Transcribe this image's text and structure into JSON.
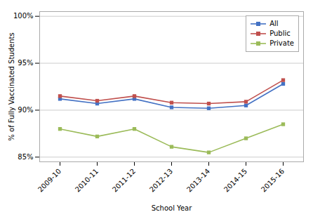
{
  "chart_data": {
    "type": "line",
    "categories": [
      "2009-10",
      "2010-11",
      "2011-12",
      "2012-13",
      "2013-14",
      "2014-15",
      "2015-16"
    ],
    "series": [
      {
        "name": "All",
        "color": "#4472c4",
        "values": [
          91.2,
          90.7,
          91.2,
          90.3,
          90.2,
          90.5,
          92.8
        ]
      },
      {
        "name": "Public",
        "color": "#c0504d",
        "values": [
          91.5,
          91.0,
          91.5,
          90.8,
          90.7,
          90.9,
          93.2
        ]
      },
      {
        "name": "Private",
        "color": "#9bbb59",
        "values": [
          88.0,
          87.2,
          88.0,
          86.1,
          85.5,
          87.0,
          88.5
        ]
      }
    ],
    "xlabel": "School Year",
    "ylabel": "% of Fully Vaccinated Students",
    "ylim": [
      84.5,
      100.5
    ],
    "yticks": [
      {
        "value": 85,
        "label": "85%"
      },
      {
        "value": 90,
        "label": "90%"
      },
      {
        "value": 95,
        "label": "95%"
      },
      {
        "value": 100,
        "label": "100%"
      }
    ],
    "grid": true,
    "legend": "upper right",
    "marker": "square"
  }
}
